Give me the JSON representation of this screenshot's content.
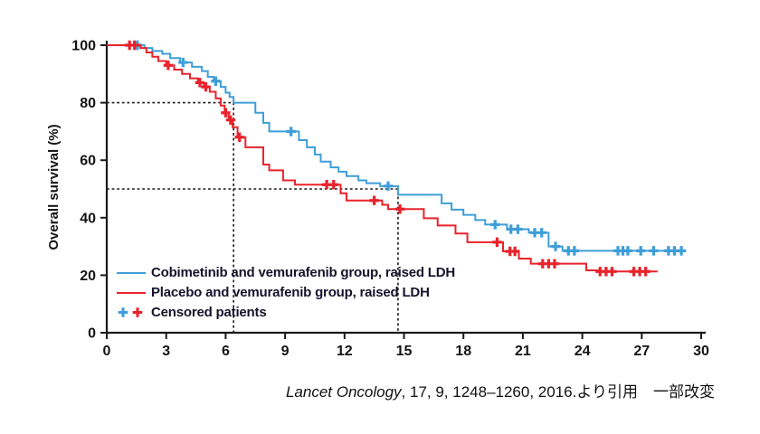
{
  "colors": {
    "cobimetinib_blue": "#3e9ed8",
    "placebo_red": "#e8232b",
    "axis": "#1a1a1a",
    "legend_text": "#17122b"
  },
  "chart_data": {
    "type": "line",
    "subtype": "kaplan-meier-step-survival",
    "title": "",
    "xlabel": "",
    "ylabel": "Overall survival (%)",
    "xlim": [
      0,
      30
    ],
    "ylim": [
      0,
      100
    ],
    "xticks": [
      0,
      3,
      6,
      9,
      12,
      15,
      18,
      21,
      24,
      27,
      30
    ],
    "yticks": [
      0,
      20,
      40,
      60,
      80,
      100
    ],
    "grid": false,
    "legend_position": "inside lower left",
    "censored_label": "Censored patients",
    "annotations": [
      {
        "type": "dashed-reference",
        "y": 80,
        "x": 6.4
      },
      {
        "type": "dashed-reference",
        "y": 50,
        "x": 14.7
      }
    ],
    "series": [
      {
        "key": "cobimetinib",
        "name": "Cobimetinib and vemurafenib group, raised LDH",
        "color": "#3e9ed8",
        "step_points": [
          [
            0,
            100
          ],
          [
            1.9,
            99
          ],
          [
            2.3,
            98
          ],
          [
            2.8,
            97
          ],
          [
            3.2,
            95.5
          ],
          [
            3.7,
            94
          ],
          [
            4.3,
            92.5
          ],
          [
            4.8,
            91
          ],
          [
            5.1,
            89
          ],
          [
            5.4,
            87.5
          ],
          [
            5.75,
            85.5
          ],
          [
            6.0,
            83.5
          ],
          [
            6.2,
            82
          ],
          [
            6.4,
            80
          ],
          [
            7.5,
            76.5
          ],
          [
            7.9,
            73
          ],
          [
            8.2,
            70
          ],
          [
            9.7,
            67
          ],
          [
            10.1,
            64.5
          ],
          [
            10.5,
            62
          ],
          [
            10.8,
            59.5
          ],
          [
            11.3,
            57.5
          ],
          [
            11.7,
            56
          ],
          [
            12.1,
            54.5
          ],
          [
            12.7,
            53
          ],
          [
            13.1,
            52
          ],
          [
            13.8,
            51
          ],
          [
            14.7,
            48
          ],
          [
            16.9,
            45
          ],
          [
            17.4,
            42.8
          ],
          [
            18.0,
            41
          ],
          [
            18.6,
            39.2
          ],
          [
            19.1,
            37.6
          ],
          [
            20.2,
            36
          ],
          [
            21.3,
            34.8
          ],
          [
            22.3,
            30
          ],
          [
            23.0,
            28.5
          ],
          [
            29.2,
            28.5
          ]
        ],
        "censor_points": [
          [
            1.55,
            100
          ],
          [
            3.85,
            94
          ],
          [
            5.5,
            87.5
          ],
          [
            9.3,
            70
          ],
          [
            14.2,
            51
          ],
          [
            19.6,
            37.6
          ],
          [
            20.4,
            36
          ],
          [
            20.75,
            36
          ],
          [
            21.6,
            34.8
          ],
          [
            21.95,
            34.8
          ],
          [
            22.65,
            30
          ],
          [
            23.3,
            28.5
          ],
          [
            23.6,
            28.5
          ],
          [
            25.8,
            28.5
          ],
          [
            26.05,
            28.5
          ],
          [
            26.3,
            28.5
          ],
          [
            26.95,
            28.5
          ],
          [
            27.6,
            28.5
          ],
          [
            28.35,
            28.5
          ],
          [
            28.65,
            28.5
          ],
          [
            29.0,
            28.5
          ]
        ]
      },
      {
        "key": "placebo",
        "name": "Placebo and vemurafenib group, raised LDH",
        "color": "#e8232b",
        "step_points": [
          [
            0,
            100
          ],
          [
            1.7,
            99
          ],
          [
            2.0,
            97.5
          ],
          [
            2.3,
            96
          ],
          [
            2.6,
            94.5
          ],
          [
            3.0,
            93
          ],
          [
            3.4,
            91.5
          ],
          [
            3.8,
            90
          ],
          [
            4.2,
            88.5
          ],
          [
            4.6,
            87
          ],
          [
            4.9,
            85.5
          ],
          [
            5.2,
            83.8
          ],
          [
            5.5,
            81.5
          ],
          [
            5.75,
            79
          ],
          [
            5.95,
            76.5
          ],
          [
            6.15,
            74
          ],
          [
            6.35,
            71.5
          ],
          [
            6.6,
            68
          ],
          [
            7.0,
            64.5
          ],
          [
            7.9,
            58.5
          ],
          [
            8.2,
            56.5
          ],
          [
            8.9,
            53
          ],
          [
            9.5,
            51.5
          ],
          [
            11.8,
            48.5
          ],
          [
            12.1,
            46
          ],
          [
            13.9,
            44.5
          ],
          [
            14.2,
            43
          ],
          [
            16.0,
            39.8
          ],
          [
            16.7,
            37.3
          ],
          [
            17.6,
            34.5
          ],
          [
            18.2,
            31.5
          ],
          [
            20.0,
            28.3
          ],
          [
            20.8,
            25.8
          ],
          [
            21.4,
            24
          ],
          [
            24.2,
            21.7
          ],
          [
            24.8,
            21.3
          ],
          [
            27.8,
            21.3
          ]
        ],
        "censor_points": [
          [
            1.15,
            100
          ],
          [
            1.4,
            100
          ],
          [
            3.1,
            93
          ],
          [
            4.7,
            87
          ],
          [
            5.0,
            85.5
          ],
          [
            6.0,
            76.5
          ],
          [
            6.25,
            74
          ],
          [
            6.7,
            68
          ],
          [
            11.1,
            51.5
          ],
          [
            11.45,
            51.5
          ],
          [
            13.5,
            46
          ],
          [
            14.8,
            43
          ],
          [
            19.7,
            31.5
          ],
          [
            20.35,
            28.3
          ],
          [
            20.6,
            28.3
          ],
          [
            22.0,
            24
          ],
          [
            22.3,
            24
          ],
          [
            22.6,
            24
          ],
          [
            24.9,
            21.3
          ],
          [
            25.2,
            21.3
          ],
          [
            25.5,
            21.3
          ],
          [
            26.6,
            21.3
          ],
          [
            26.9,
            21.3
          ],
          [
            27.2,
            21.3
          ]
        ]
      }
    ]
  },
  "citation": {
    "italic": "Lancet Oncology",
    "rest": ", 17, 9, 1248–1260, 2016.より引用　一部改変"
  }
}
